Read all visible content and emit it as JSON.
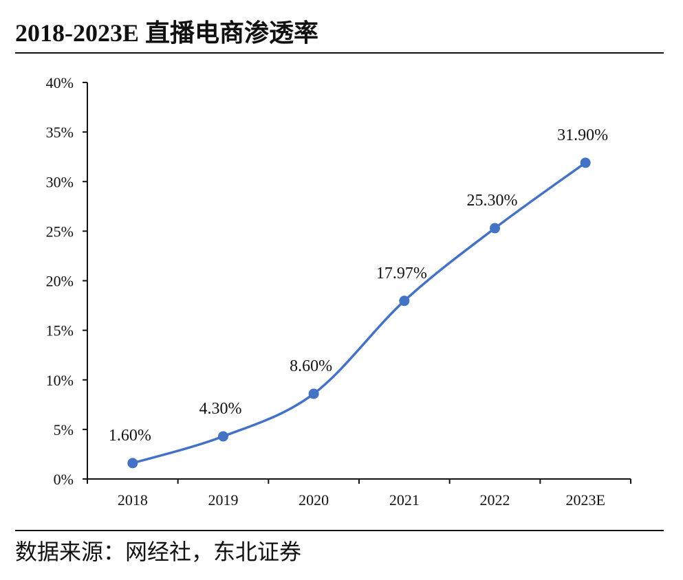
{
  "header": {
    "title": "2018-2023E 直播电商渗透率"
  },
  "footer": {
    "source": "数据来源：网经社，东北证券"
  },
  "chart_data": {
    "type": "line",
    "smooth": true,
    "categories": [
      "2018",
      "2019",
      "2020",
      "2021",
      "2022",
      "2023E"
    ],
    "series": [
      {
        "values": [
          1.6,
          4.3,
          8.6,
          17.97,
          25.3,
          31.9
        ],
        "data_labels": [
          "1.60%",
          "4.30%",
          "8.60%",
          "17.97%",
          "25.30%",
          "31.90%"
        ],
        "color": "#4472C4"
      }
    ],
    "ylim": [
      0,
      40
    ],
    "y_ticks": [
      0,
      5,
      10,
      15,
      20,
      25,
      30,
      35,
      40
    ],
    "y_tick_labels": [
      "0%",
      "5%",
      "10%",
      "15%",
      "20%",
      "25%",
      "30%",
      "35%",
      "40%"
    ],
    "grid": false,
    "legend": "none",
    "axis_color": "#111111"
  }
}
